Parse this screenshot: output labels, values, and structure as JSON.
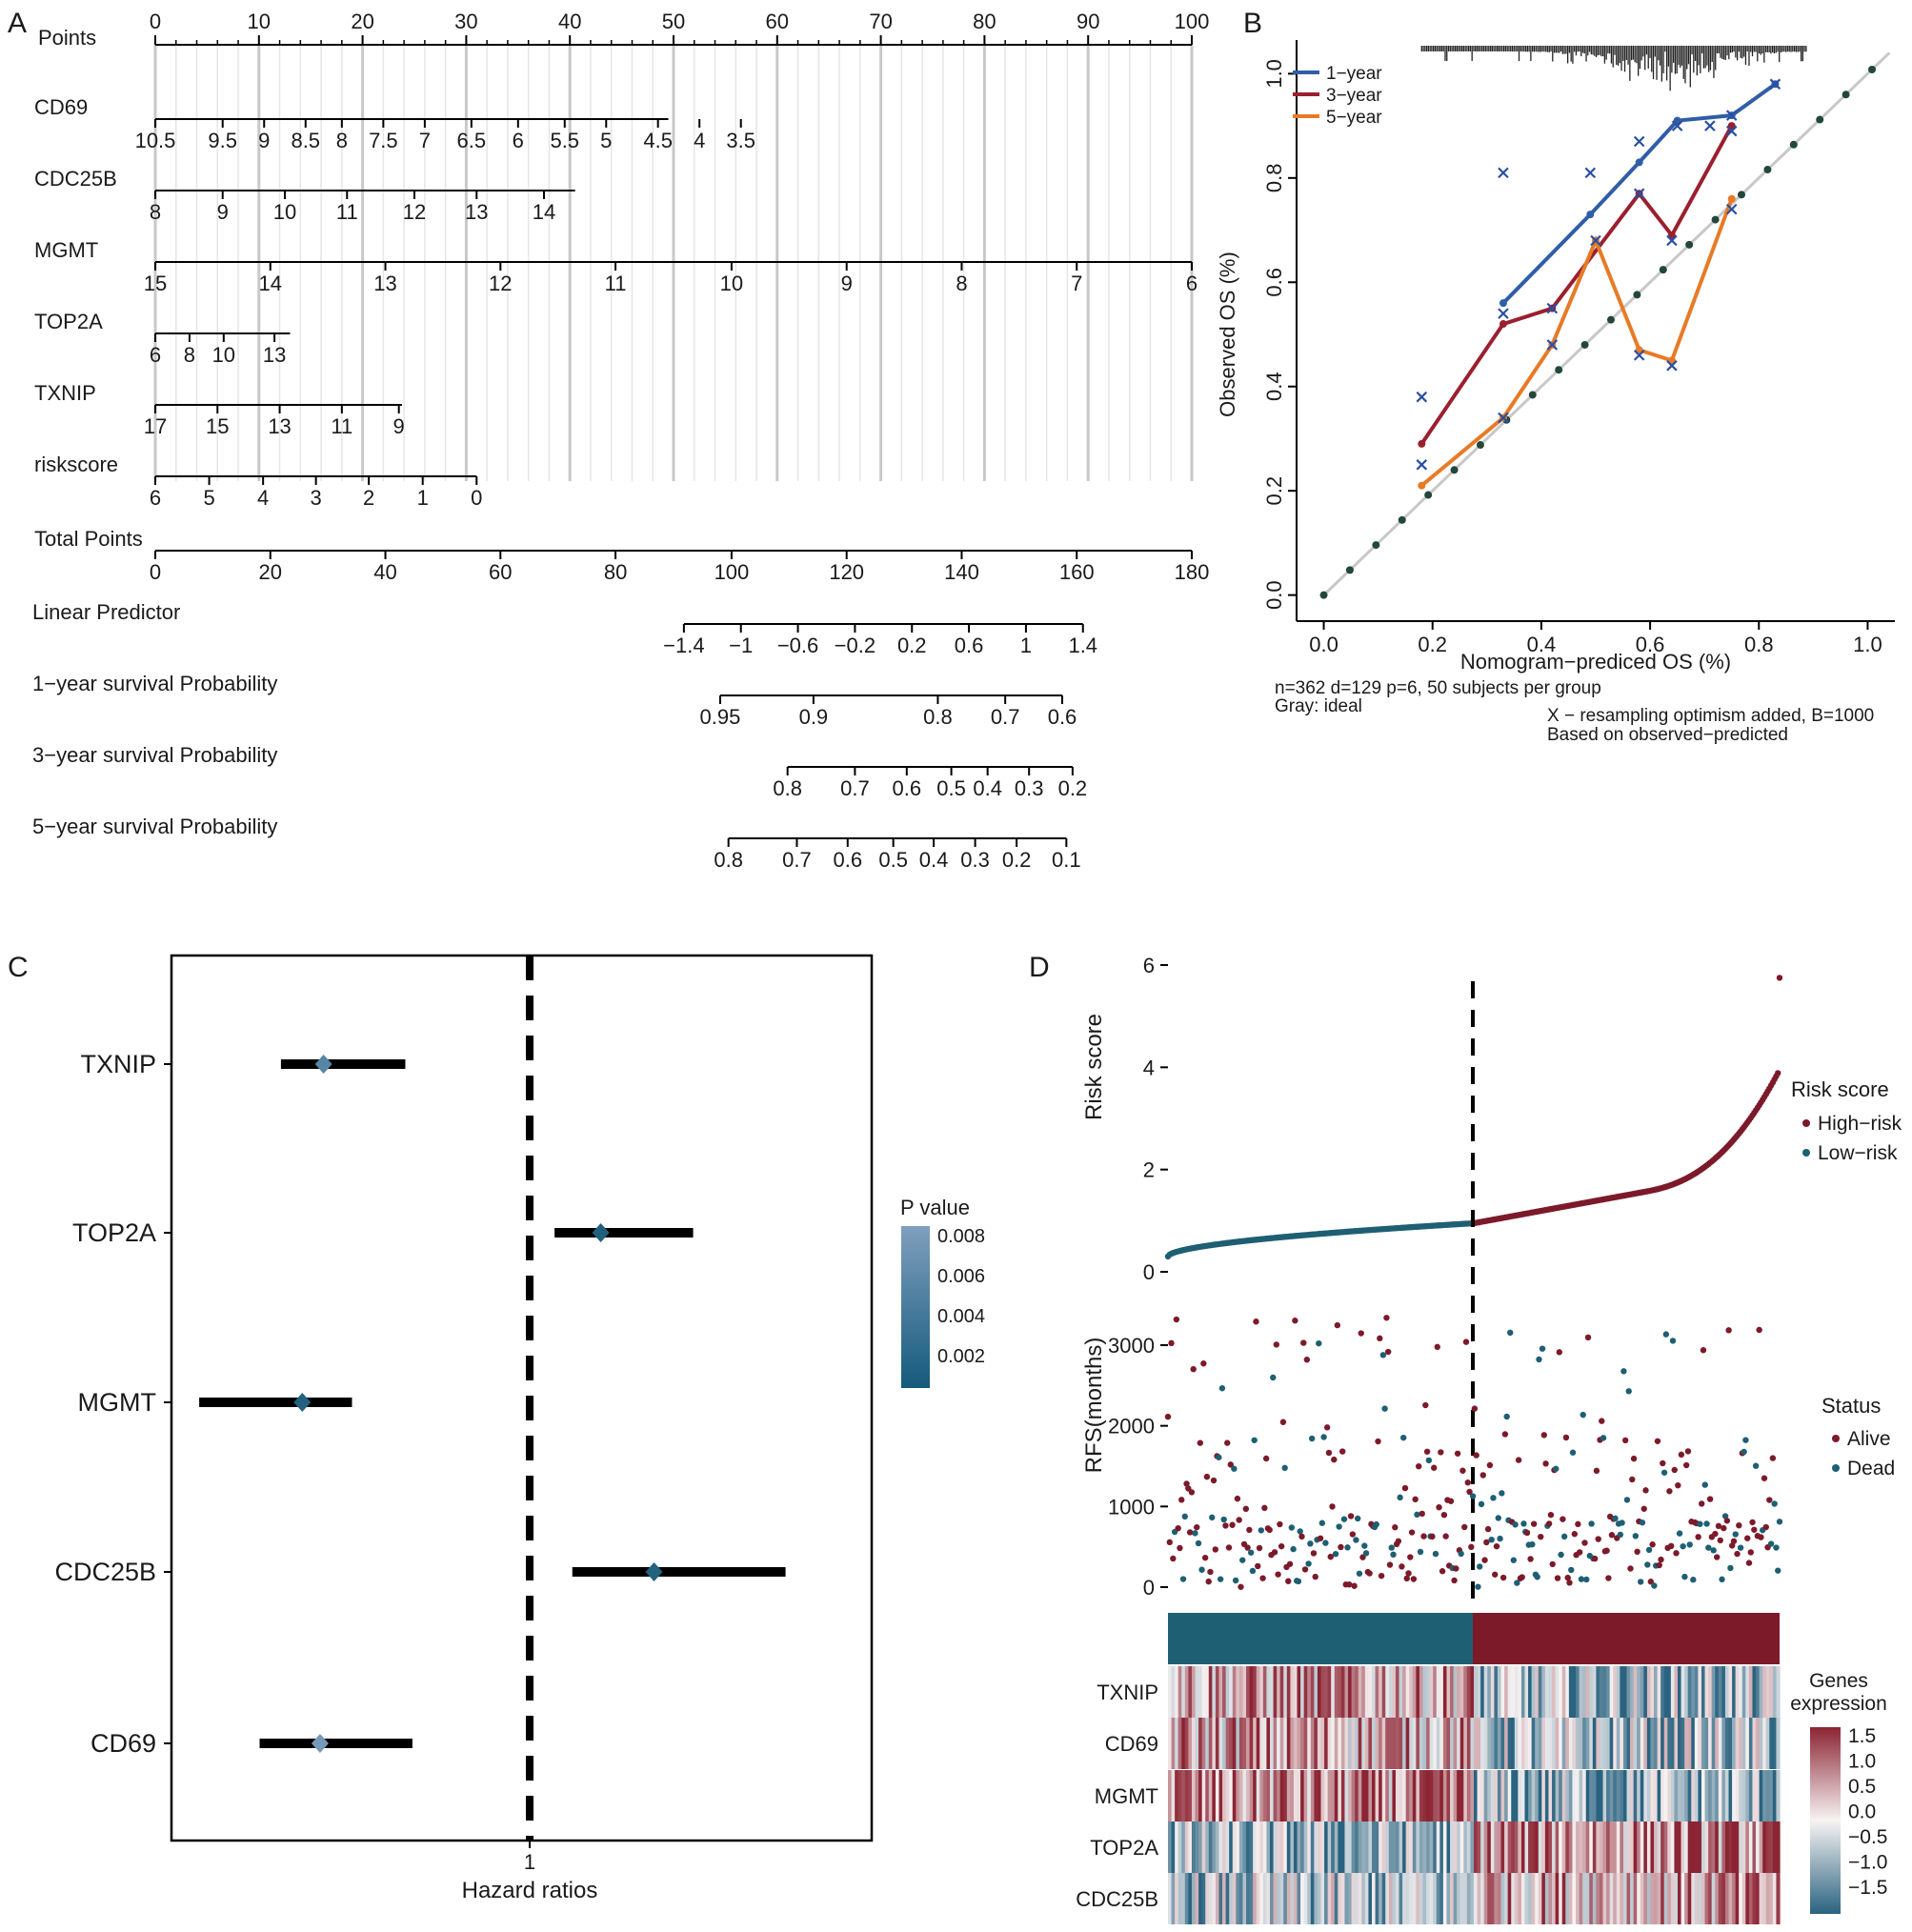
{
  "panels": {
    "a": "A",
    "b": "B",
    "c": "C",
    "d": "D"
  },
  "colors": {
    "year1": "#2f5ea6",
    "year3": "#9b1f2e",
    "year5": "#e87a26",
    "ideal": "#c8c8c8",
    "ideal_dots": "#23473b",
    "low_risk": "#1e5f73",
    "high_risk": "#7c1a2a",
    "pv_dark": "#1b5b7a",
    "pv_light": "#6e8fae"
  },
  "chart_data": [
    {
      "type": "nomogram",
      "panel": "A",
      "scales": [
        {
          "label": "Points",
          "ticks": [
            "0",
            "10",
            "20",
            "30",
            "40",
            "50",
            "60",
            "70",
            "80",
            "90",
            "100"
          ],
          "tick_points": [
            0,
            10,
            20,
            30,
            40,
            50,
            60,
            70,
            80,
            90,
            100
          ],
          "grid": true
        },
        {
          "label": "CD69",
          "ticks": [
            "10.5",
            "9.5",
            "9",
            "8.5",
            "8",
            "7.5",
            "7",
            "6.5",
            "6",
            "5.5",
            "5",
            "4.5",
            "4",
            "3.5"
          ],
          "tick_points": [
            0,
            6.5,
            10.5,
            14.5,
            18,
            22,
            26,
            30.5,
            35,
            39.5,
            43.5,
            48.5,
            52.5,
            56.5
          ],
          "extent": [
            0,
            49.5
          ]
        },
        {
          "label": "CDC25B",
          "ticks": [
            "8",
            "9",
            "10",
            "11",
            "12",
            "13",
            "14"
          ],
          "tick_points": [
            0,
            6.5,
            12.5,
            18.5,
            25,
            31,
            37.5
          ],
          "extent": [
            0,
            40.5
          ]
        },
        {
          "label": "MGMT",
          "ticks": [
            "15",
            "14",
            "13",
            "12",
            "11",
            "10",
            "9",
            "8",
            "7",
            "6"
          ],
          "tick_points": [
            0,
            11.1,
            22.2,
            33.3,
            44.4,
            55.6,
            66.7,
            77.8,
            88.9,
            100
          ],
          "extent": [
            0,
            100
          ]
        },
        {
          "label": "TOP2A",
          "ticks": [
            "6",
            "8",
            "10",
            "13"
          ],
          "tick_points": [
            0,
            3.3,
            6.6,
            11.5
          ],
          "extent": [
            0,
            13
          ]
        },
        {
          "label": "TXNIP",
          "ticks": [
            "17",
            "15",
            "13",
            "11",
            "9"
          ],
          "tick_points": [
            0,
            6,
            12,
            18,
            23.5
          ],
          "extent": [
            0,
            23.8
          ]
        },
        {
          "label": "riskscore",
          "ticks": [
            "6",
            "5",
            "4",
            "3",
            "2",
            "1",
            "0"
          ],
          "tick_points": [
            0,
            5.2,
            10.4,
            15.5,
            20.6,
            25.8,
            31
          ],
          "extent": [
            0,
            31
          ]
        },
        {
          "label": "Total Points",
          "ticks": [
            "0",
            "20",
            "40",
            "60",
            "80",
            "100",
            "120",
            "140",
            "160",
            "180"
          ],
          "tick_points": [
            0,
            11.1,
            22.2,
            33.3,
            44.4,
            55.6,
            66.7,
            77.8,
            88.9,
            100
          ],
          "extent": [
            0,
            100
          ]
        },
        {
          "label": "Linear Predictor",
          "ticks": [
            "−1.4",
            "−1",
            "−0.6",
            "−0.2",
            "0.2",
            "0.6",
            "1",
            "1.4"
          ],
          "tick_points": [
            51,
            56.5,
            62,
            67.5,
            73,
            78.5,
            84,
            89.5
          ],
          "extent": [
            51,
            89.5
          ]
        },
        {
          "label": "1−year survival Probability",
          "ticks": [
            "0.95",
            "0.9",
            "0.8",
            "0.7",
            "0.6"
          ],
          "tick_points": [
            54.5,
            63.5,
            75.5,
            82,
            87.5
          ],
          "extent": [
            54.5,
            87.5
          ]
        },
        {
          "label": "3−year survival Probability",
          "ticks": [
            "0.8",
            "0.7",
            "0.6",
            "0.5",
            "0.4",
            "0.3",
            "0.2"
          ],
          "tick_points": [
            61,
            67.5,
            72.5,
            76.8,
            80.3,
            84.3,
            88.5
          ],
          "extent": [
            61,
            88.5
          ]
        },
        {
          "label": "5−year survival Probability",
          "ticks": [
            "0.8",
            "0.7",
            "0.6",
            "0.5",
            "0.4",
            "0.3",
            "0.2",
            "0.1"
          ],
          "tick_points": [
            55.3,
            61.9,
            66.8,
            71.2,
            75.1,
            79.1,
            83.1,
            87.9
          ],
          "extent": [
            55.3,
            87.9
          ]
        }
      ]
    },
    {
      "type": "line",
      "panel": "B",
      "xlabel": "Nomogram−prediced OS (%)",
      "ylabel": "Observed OS (%)",
      "xlim": [
        -0.05,
        1.05
      ],
      "ylim": [
        -0.05,
        1.05
      ],
      "xticks": [
        "0.0",
        "0.2",
        "0.4",
        "0.6",
        "0.8",
        "1.0"
      ],
      "yticks": [
        "0.0",
        "0.2",
        "0.4",
        "0.6",
        "0.8",
        "1.0"
      ],
      "legend": [
        "1−year",
        "3−year",
        "5−year"
      ],
      "legend_position": "top-left",
      "series": [
        {
          "name": "1−year",
          "x": [
            0.33,
            0.49,
            0.58,
            0.65,
            0.75,
            0.83
          ],
          "y": [
            0.56,
            0.73,
            0.83,
            0.91,
            0.92,
            0.98
          ],
          "x_marks": [
            0.33,
            0.49,
            0.58,
            0.65,
            0.71,
            0.75,
            0.83
          ],
          "y_marks": [
            0.81,
            0.81,
            0.87,
            0.9,
            0.9,
            0.92,
            0.98
          ]
        },
        {
          "name": "3−year",
          "x": [
            0.18,
            0.33,
            0.42,
            0.58,
            0.64,
            0.75
          ],
          "y": [
            0.29,
            0.52,
            0.55,
            0.77,
            0.69,
            0.9
          ],
          "x_marks": [
            0.18,
            0.33,
            0.42,
            0.58,
            0.64,
            0.75
          ],
          "y_marks": [
            0.38,
            0.54,
            0.55,
            0.77,
            0.68,
            0.89
          ]
        },
        {
          "name": "5−year",
          "x": [
            0.18,
            0.33,
            0.42,
            0.5,
            0.58,
            0.64,
            0.75
          ],
          "y": [
            0.21,
            0.34,
            0.48,
            0.68,
            0.47,
            0.45,
            0.76
          ],
          "x_marks": [
            0.18,
            0.33,
            0.42,
            0.5,
            0.58,
            0.64,
            0.75
          ],
          "y_marks": [
            0.25,
            0.34,
            0.48,
            0.68,
            0.46,
            0.44,
            0.74
          ]
        }
      ],
      "notes": [
        "n=362 d=129 p=6, 50 subjects per group",
        "Gray: ideal",
        "X − resampling optimism added, B=1000",
        "Based on observed−predicted"
      ]
    },
    {
      "type": "forest",
      "panel": "C",
      "xlabel": "Hazard ratios",
      "reference_line": "1",
      "legend_title": "P value",
      "legend_ticks": [
        "0.008",
        "0.006",
        "0.004",
        "0.002"
      ],
      "genes": [
        "TXNIP",
        "TOP2A",
        "MGMT",
        "CDC25B",
        "CD69"
      ],
      "hr_position": [
        0.42,
        1.2,
        0.36,
        1.35,
        0.41
      ],
      "ci_low": [
        0.3,
        1.07,
        0.07,
        1.12,
        0.24
      ],
      "ci_high": [
        0.65,
        1.46,
        0.5,
        1.72,
        0.67
      ],
      "p_value": [
        0.0052,
        0.0005,
        0.0008,
        0.0007,
        0.0078
      ]
    },
    {
      "type": "scatter",
      "panel": "D",
      "subplots": [
        {
          "ylabel": "Risk score",
          "yticks": [
            "0",
            "2",
            "4",
            "6"
          ],
          "ylim": [
            0,
            6
          ],
          "legend_title": "Risk score",
          "legend": [
            "High−risk",
            "Low−risk"
          ],
          "n": 362,
          "cutoff_index": 181
        },
        {
          "ylabel": "RFS(months)",
          "yticks": [
            "0",
            "1000",
            "2000",
            "3000"
          ],
          "ylim": [
            0,
            3500
          ],
          "legend_title": "Status",
          "legend": [
            "Alive",
            "Dead"
          ]
        }
      ],
      "heatmap": {
        "rows": [
          "TXNIP",
          "CD69",
          "MGMT",
          "TOP2A",
          "CDC25B"
        ],
        "legend_title": "Genes expression",
        "legend_ticks": [
          "1.5",
          "1.0",
          "0.5",
          "0.0",
          "−0.5",
          "−1.0",
          "−1.5"
        ],
        "range": [
          -1.5,
          1.5
        ]
      }
    }
  ]
}
